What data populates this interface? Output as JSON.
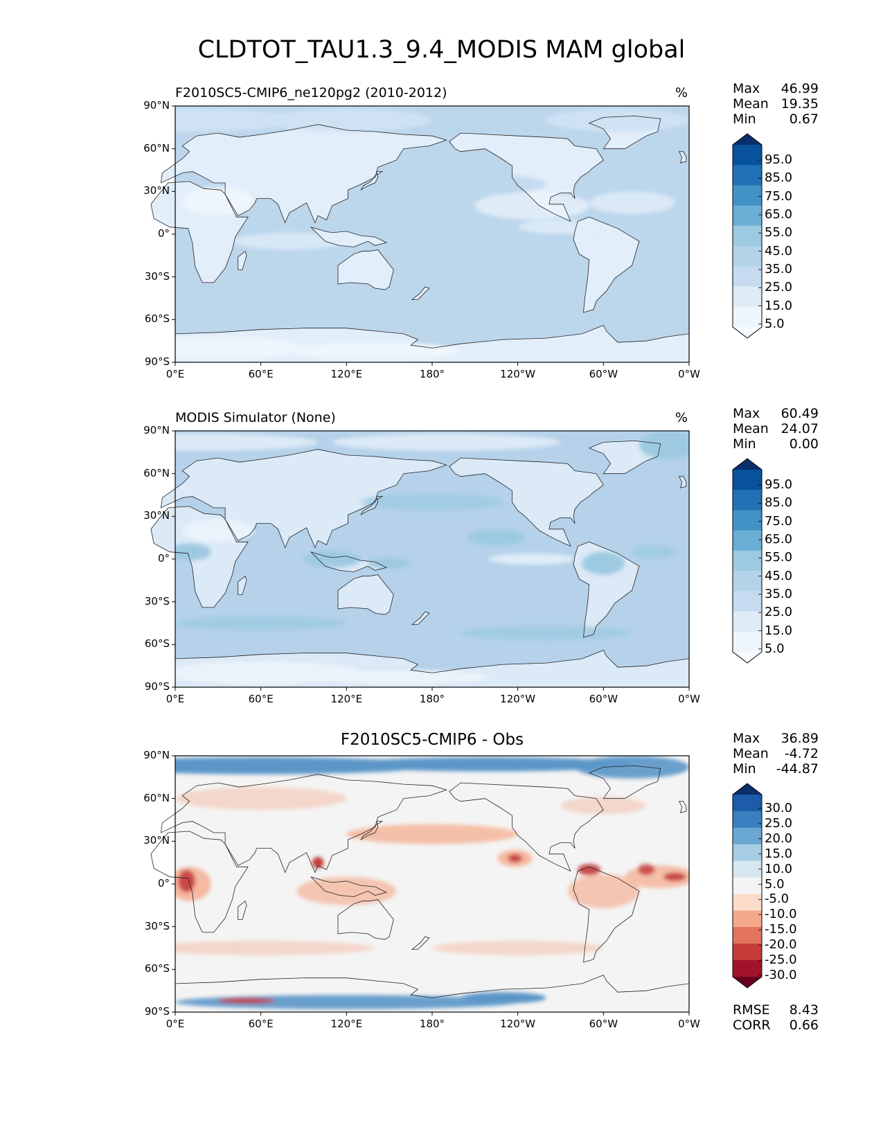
{
  "figure": {
    "title": "CLDTOT_TAU1.3_9.4_MODIS MAM global"
  },
  "axes": {
    "lat_ticks": [
      "90°N",
      "60°N",
      "30°N",
      "0°",
      "30°S",
      "60°S",
      "90°S"
    ],
    "lon_ticks": [
      "0°E",
      "60°E",
      "120°E",
      "180°",
      "120°W",
      "60°W",
      "0°W"
    ]
  },
  "panels": [
    {
      "title": "F2010SC5-CMIP6_ne120pg2 (2010-2012)",
      "units": "%",
      "stats": [
        {
          "label": "Max",
          "value": "46.99"
        },
        {
          "label": "Mean",
          "value": "19.35"
        },
        {
          "label": "Min",
          "value": "0.67"
        }
      ],
      "colorbar_labels": [
        "95.0",
        "85.0",
        "75.0",
        "65.0",
        "55.0",
        "45.0",
        "35.0",
        "25.0",
        "15.0",
        "5.0"
      ],
      "colorbar_colors": [
        "#0a2f6b",
        "#08519c",
        "#2171b5",
        "#4292c6",
        "#6baed6",
        "#9ecae1",
        "#b3d3e8",
        "#c6dbef",
        "#deebf7",
        "#eef5fc",
        "#f7fbff"
      ],
      "map_colors": {
        "ocean": "#bcd6ec",
        "band": "#cfe2f3",
        "land": "#e2eef9",
        "light": "#eef5fc"
      }
    },
    {
      "title": "MODIS Simulator (None)",
      "units": "%",
      "stats": [
        {
          "label": "Max",
          "value": "60.49"
        },
        {
          "label": "Mean",
          "value": "24.07"
        },
        {
          "label": "Min",
          "value": "0.00"
        }
      ],
      "colorbar_labels": [
        "95.0",
        "85.0",
        "75.0",
        "65.0",
        "55.0",
        "45.0",
        "35.0",
        "25.0",
        "15.0",
        "5.0"
      ],
      "colorbar_colors": [
        "#0a2f6b",
        "#08519c",
        "#2171b5",
        "#4292c6",
        "#6baed6",
        "#9ecae1",
        "#b3d3e8",
        "#c6dbef",
        "#deebf7",
        "#eef5fc",
        "#f7fbff"
      ],
      "map_colors": {
        "ocean": "#b5d2ea",
        "band": "#9ecae1",
        "land": "#dce9f6",
        "light": "#eaf3fb"
      }
    },
    {
      "title": "F2010SC5-CMIP6 - Obs",
      "units": "",
      "stats": [
        {
          "label": "Max",
          "value": "36.89"
        },
        {
          "label": "Mean",
          "value": "-4.72"
        },
        {
          "label": "Min",
          "value": "-44.87"
        }
      ],
      "extra_stats": [
        {
          "label": "RMSE",
          "value": "8.43"
        },
        {
          "label": "CORR",
          "value": "0.66"
        }
      ],
      "colorbar_labels": [
        "30.0",
        "25.0",
        "20.0",
        "15.0",
        "10.0",
        "5.0",
        "-5.0",
        "-10.0",
        "-15.0",
        "-20.0",
        "-25.0",
        "-30.0"
      ],
      "colorbar_colors": [
        "#08306b",
        "#1c5ca8",
        "#3a7fbf",
        "#6aa7d3",
        "#a6cde3",
        "#d6e7f1",
        "#f4f4f4",
        "#fbdccb",
        "#f5a98b",
        "#e3745e",
        "#c43b3a",
        "#a2122a",
        "#67001f"
      ],
      "map_colors": {
        "ocean": "#f4f4f4",
        "pos": "#5b96c8",
        "neg": "#f4b9a0",
        "strong_neg": "#c43b3a"
      }
    }
  ],
  "chart_data": {
    "type": "heatmap",
    "title": "CLDTOT_TAU1.3_9.4_MODIS MAM global",
    "x_ticks": [
      "0°E",
      "60°E",
      "120°E",
      "180°",
      "120°W",
      "60°W",
      "0°W"
    ],
    "y_ticks": [
      "90°N",
      "60°N",
      "30°N",
      "0°",
      "30°S",
      "60°S",
      "90°S"
    ],
    "xlim": [
      0,
      360
    ],
    "ylim": [
      -90,
      90
    ],
    "series": [
      {
        "name": "F2010SC5-CMIP6_ne120pg2 (2010-2012)",
        "max": 46.99,
        "mean": 19.35,
        "min": 0.67,
        "levels": [
          5,
          15,
          25,
          35,
          45,
          55,
          65,
          75,
          85,
          95
        ]
      },
      {
        "name": "MODIS Simulator (None)",
        "max": 60.49,
        "mean": 24.07,
        "min": 0.0,
        "levels": [
          5,
          15,
          25,
          35,
          45,
          55,
          65,
          75,
          85,
          95
        ]
      },
      {
        "name": "F2010SC5-CMIP6 - Obs",
        "max": 36.89,
        "mean": -4.72,
        "min": -44.87,
        "rmse": 8.43,
        "corr": 0.66,
        "levels": [
          -30,
          -25,
          -20,
          -15,
          -10,
          -5,
          5,
          10,
          15,
          20,
          25,
          30
        ]
      }
    ]
  }
}
